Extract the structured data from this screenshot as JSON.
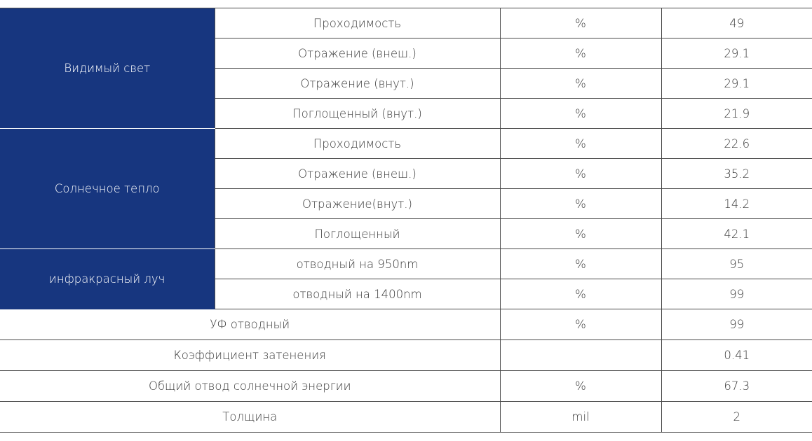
{
  "groups": {
    "visible_light": {
      "label": "Видимый свет",
      "rows": [
        {
          "param": "Проходимость",
          "unit": "%",
          "value": "49"
        },
        {
          "param": "Отражение (внеш.)",
          "unit": "%",
          "value": "29.1"
        },
        {
          "param": "Отражение (внут.)",
          "unit": "%",
          "value": "29.1"
        },
        {
          "param": "Поглощенный (внут.)",
          "unit": "%",
          "value": "21.9"
        }
      ]
    },
    "solar_heat": {
      "label": "Солнечное тепло",
      "rows": [
        {
          "param": "Проходимость",
          "unit": "%",
          "value": "22.6"
        },
        {
          "param": "Отражение (внеш.)",
          "unit": "%",
          "value": "35.2"
        },
        {
          "param": "Отражение(внут.)",
          "unit": "%",
          "value": "14.2"
        },
        {
          "param": "Поглощенный",
          "unit": "%",
          "value": "42.1"
        }
      ]
    },
    "infrared": {
      "label": "инфракрасный луч",
      "rows": [
        {
          "param": "отводный на 950nm",
          "unit": "%",
          "value": "95"
        },
        {
          "param": "отводный на 1400nm",
          "unit": "%",
          "value": "99"
        }
      ]
    }
  },
  "single_rows": [
    {
      "param": "УФ отводный",
      "unit": "%",
      "value": "99"
    },
    {
      "param": "Коэффициент затенения",
      "unit": "",
      "value": "0.41"
    },
    {
      "param": "Общий отвод солнечной энергии",
      "unit": "%",
      "value": "67.3"
    },
    {
      "param": "Толщина",
      "unit": "mil",
      "value": "2"
    }
  ],
  "colors": {
    "group_background": "#17367f",
    "group_text": "#ffffff",
    "grid_line": "#4a4a4a"
  }
}
